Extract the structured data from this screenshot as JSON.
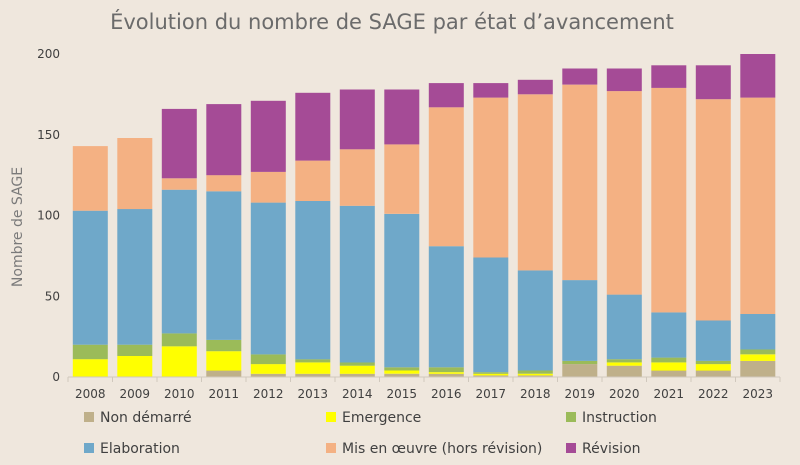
{
  "chart_data": {
    "type": "bar",
    "stacked": true,
    "title": "Évolution du nombre de SAGE par état d’avancement",
    "xlabel": "",
    "ylabel": "Nombre de SAGE",
    "ylim": [
      0,
      200
    ],
    "yticks": [
      0,
      50,
      100,
      150,
      200
    ],
    "grid": false,
    "legend_position": "bottom",
    "categories": [
      "2008",
      "2009",
      "2010",
      "2011",
      "2012",
      "2013",
      "2014",
      "2015",
      "2016",
      "2017",
      "2018",
      "2019",
      "2020",
      "2021",
      "2022",
      "2023"
    ],
    "series": [
      {
        "name": "Non démarré",
        "color": "#bfb08a",
        "values": [
          0,
          0,
          0,
          4,
          2,
          2,
          2,
          2,
          2,
          1,
          1,
          8,
          7,
          4,
          4,
          10
        ]
      },
      {
        "name": "Emergence",
        "color": "#ffff00",
        "values": [
          11,
          13,
          19,
          12,
          6,
          7,
          5,
          2,
          1,
          1,
          1,
          0,
          2,
          5,
          4,
          4
        ]
      },
      {
        "name": "Instruction",
        "color": "#9bbb59",
        "values": [
          9,
          7,
          8,
          7,
          6,
          2,
          2,
          2,
          3,
          1,
          2,
          2,
          2,
          3,
          2,
          3
        ]
      },
      {
        "name": "Elaboration",
        "color": "#6fa8c9",
        "values": [
          83,
          84,
          89,
          92,
          94,
          98,
          97,
          95,
          75,
          71,
          62,
          50,
          40,
          28,
          25,
          22
        ]
      },
      {
        "name": "Mis en œuvre (hors révision)",
        "color": "#f4b183",
        "values": [
          40,
          44,
          7,
          10,
          19,
          25,
          35,
          43,
          86,
          99,
          109,
          121,
          126,
          139,
          137,
          134
        ]
      },
      {
        "name": "Révision",
        "color": "#a54b96",
        "values": [
          0,
          0,
          43,
          44,
          44,
          42,
          37,
          34,
          15,
          9,
          9,
          10,
          14,
          14,
          21,
          27
        ]
      }
    ]
  }
}
